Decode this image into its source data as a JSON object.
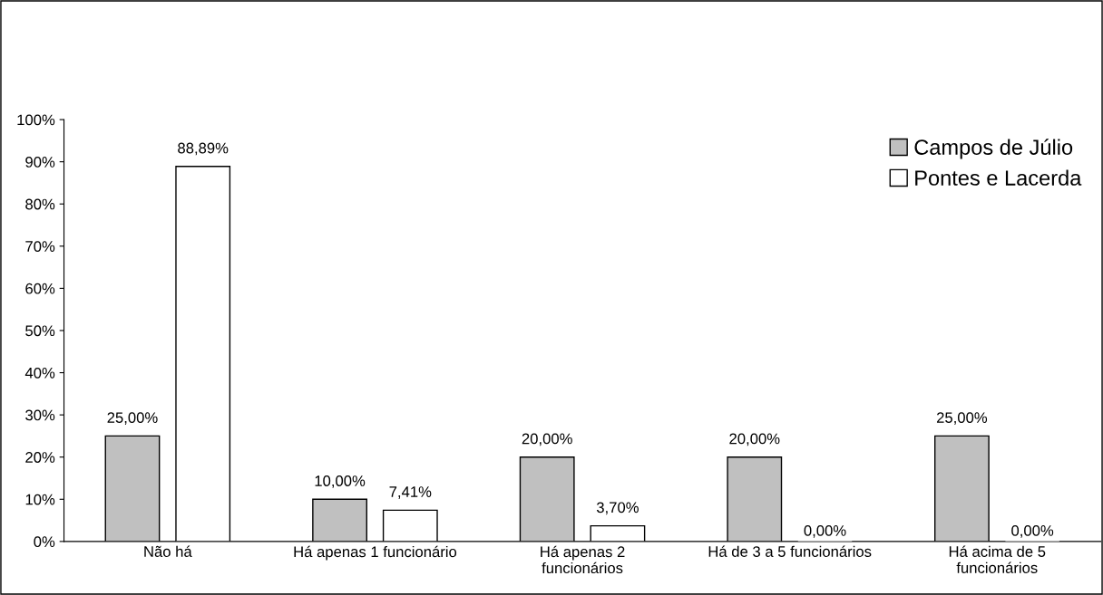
{
  "chart_data": {
    "type": "bar",
    "categories": [
      "Não há",
      "Há apenas 1 funcionário",
      "Há apenas 2\nfuncionários",
      "Há de 3 a 5 funcionários",
      "Há acima de 5\nfuncionários"
    ],
    "series": [
      {
        "name": "Campos de Júlio",
        "color": "#c0c0c0",
        "values": [
          25.0,
          10.0,
          20.0,
          20.0,
          25.0
        ],
        "value_labels": [
          "25,00%",
          "10,00%",
          "20,00%",
          "20,00%",
          "25,00%"
        ]
      },
      {
        "name": "Pontes e Lacerda",
        "color": "#ffffff",
        "values": [
          88.89,
          7.41,
          3.7,
          0.0,
          0.0
        ],
        "value_labels": [
          "88,89%",
          "7,41%",
          "3,70%",
          "0,00%",
          "0,00%"
        ]
      }
    ],
    "ylim": [
      0,
      100
    ],
    "yticks": [
      {
        "value": 0,
        "label": "0%"
      },
      {
        "value": 10,
        "label": "10%"
      },
      {
        "value": 20,
        "label": "20%"
      },
      {
        "value": 30,
        "label": "30%"
      },
      {
        "value": 40,
        "label": "40%"
      },
      {
        "value": 50,
        "label": "50%"
      },
      {
        "value": 60,
        "label": "60%"
      },
      {
        "value": 70,
        "label": "70%"
      },
      {
        "value": 80,
        "label": "80%"
      },
      {
        "value": 90,
        "label": "90%"
      },
      {
        "value": 100,
        "label": "100%"
      }
    ],
    "grid": false,
    "legend": "top right"
  }
}
